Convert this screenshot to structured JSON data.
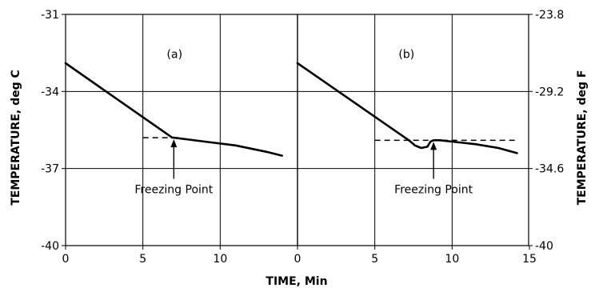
{
  "chart_data": {
    "type": "line",
    "xlabel": "TIME, Min",
    "ylabel_left": "TEMPERATURE, deg C",
    "ylabel_right": "TEMPERATURE, deg F",
    "ylim": [
      -40,
      -31
    ],
    "y_ticks_left": [
      "-31",
      "-34",
      "-37",
      "-40"
    ],
    "y_ticks_right": [
      "-23.8",
      "-29.2",
      "-34.6",
      "-40"
    ],
    "grid": true,
    "panels": [
      {
        "label": "(a)",
        "x_ticks": [
          "0",
          "5",
          "10"
        ],
        "xlim": [
          0,
          15
        ],
        "series": [
          {
            "x": [
              0,
              6.9,
              7.0,
              9.0,
              11.0,
              13.0,
              14.0
            ],
            "y": [
              -32.9,
              -35.8,
              -35.8,
              -35.95,
              -36.1,
              -36.35,
              -36.5
            ]
          }
        ],
        "freezing_point_temp": -35.8,
        "freezing_line_x": [
          5,
          7.0
        ],
        "annotation": "Freezing Point",
        "annotation_x": 7.0
      },
      {
        "label": "(b)",
        "x_ticks": [
          "0",
          "5",
          "10",
          "15"
        ],
        "xlim": [
          0,
          15
        ],
        "series": [
          {
            "x": [
              0,
              7.2,
              7.6,
              8.0,
              8.4,
              8.6,
              8.8,
              9.2,
              10.0,
              11.5,
              13.0,
              14.2
            ],
            "y": [
              -32.9,
              -35.9,
              -36.1,
              -36.2,
              -36.15,
              -35.95,
              -35.9,
              -35.9,
              -35.95,
              -36.05,
              -36.2,
              -36.4
            ]
          }
        ],
        "freezing_point_temp": -35.9,
        "freezing_line_x": [
          5,
          14.2
        ],
        "annotation": "Freezing Point",
        "annotation_x": 8.8
      }
    ]
  }
}
